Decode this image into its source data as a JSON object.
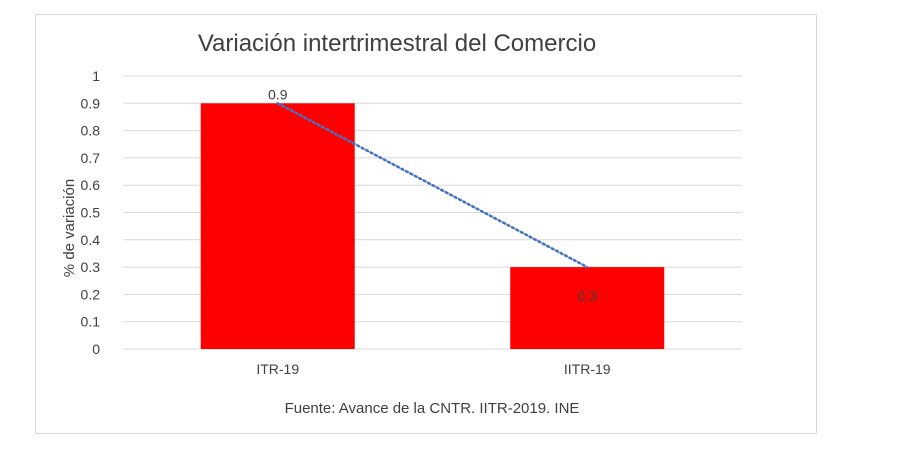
{
  "chart_data": {
    "type": "bar",
    "title": "Variación intertrimestral del Comercio",
    "ylabel": "% de variación",
    "xlabel": "",
    "categories": [
      "ITR-19",
      "IITR-19"
    ],
    "values": [
      0.9,
      0.3
    ],
    "data_labels": [
      "0.9",
      "0.3"
    ],
    "ylim": [
      0,
      1
    ],
    "yticks": [
      "0",
      "0.1",
      "0.2",
      "0.3",
      "0.4",
      "0.5",
      "0.6",
      "0.7",
      "0.8",
      "0.9",
      "1"
    ],
    "grid": true,
    "legend": "none",
    "trendline": "linear, dotted",
    "source": "Fuente: Avance de la CNTR. IITR-2019. INE",
    "colors": {
      "bar": "#ff0000",
      "trendline": "#4472c4",
      "grid": "#d9d9d9",
      "text": "#404040"
    }
  }
}
